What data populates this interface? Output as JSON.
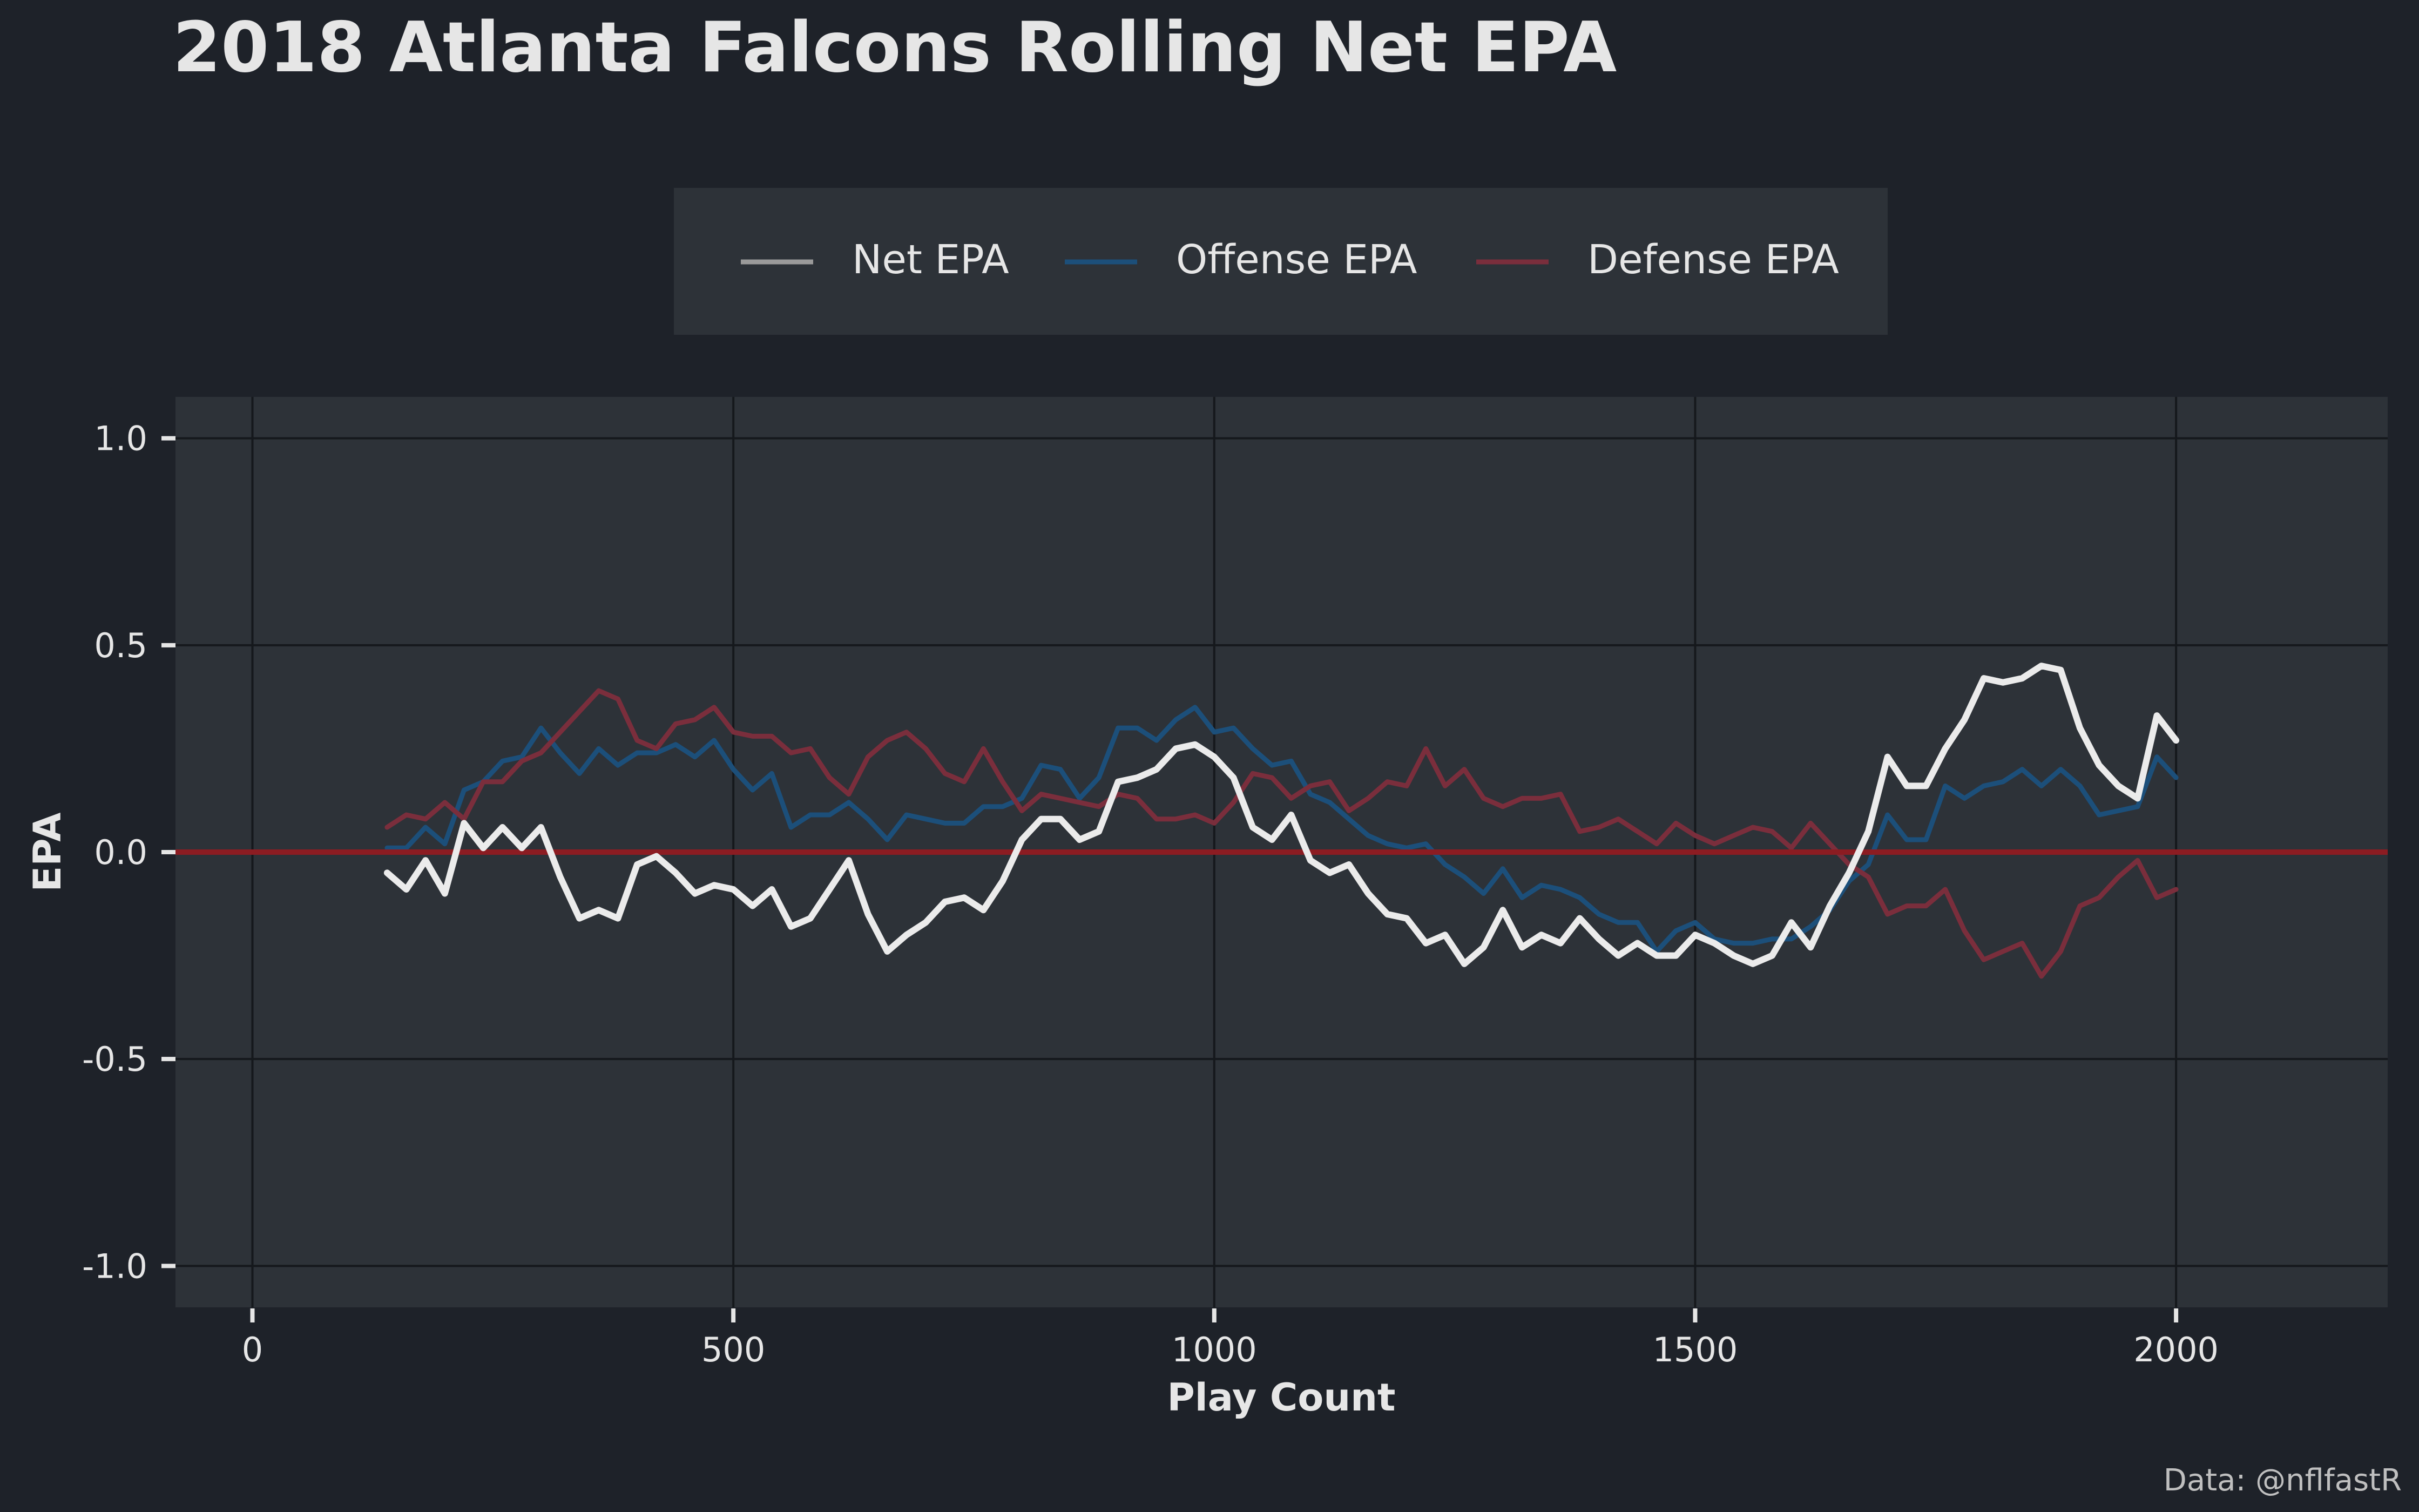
{
  "chart_data": {
    "type": "line",
    "title": "2018 Atlanta Falcons Rolling Net EPA",
    "xlabel": "Play Count",
    "ylabel": "EPA",
    "caption": "Data: @nflfastR",
    "xlim": [
      -80,
      2220
    ],
    "ylim": [
      -1.1,
      1.1
    ],
    "x_ticks": [
      0,
      500,
      1000,
      1500,
      2000
    ],
    "x_tick_labels": [
      "0",
      "500",
      "1000",
      "1500",
      "2000"
    ],
    "y_ticks": [
      1.0,
      0.5,
      0.0,
      -0.5,
      -1.0
    ],
    "y_tick_labels": [
      "1.0",
      "0.5",
      "0.0",
      "-0.5",
      "-1.0"
    ],
    "grid": true,
    "legend_position": "top",
    "reference_line": {
      "y": 0,
      "color": "#8c1c22"
    },
    "colors": {
      "background": "#1e2229",
      "panel": "#2d3238",
      "grid": "#15181c",
      "text": "#e6e6e6"
    },
    "series": [
      {
        "name": "Net EPA",
        "color": "#ebebeb",
        "x": [
          140,
          160,
          180,
          200,
          220,
          240,
          260,
          280,
          300,
          320,
          340,
          360,
          380,
          400,
          420,
          440,
          460,
          480,
          500,
          520,
          540,
          560,
          580,
          600,
          620,
          640,
          660,
          680,
          700,
          720,
          740,
          760,
          780,
          800,
          820,
          840,
          860,
          880,
          900,
          920,
          940,
          960,
          980,
          1000,
          1020,
          1040,
          1060,
          1080,
          1100,
          1120,
          1140,
          1160,
          1180,
          1200,
          1220,
          1240,
          1260,
          1280,
          1300,
          1320,
          1340,
          1360,
          1380,
          1400,
          1420,
          1440,
          1460,
          1480,
          1500,
          1520,
          1540,
          1560,
          1580,
          1600,
          1620,
          1640,
          1660,
          1680,
          1700,
          1720,
          1740,
          1760,
          1780,
          1800,
          1820,
          1840,
          1860,
          1880,
          1900,
          1920,
          1940,
          1960,
          1980,
          2000
        ],
        "values": [
          -0.05,
          -0.09,
          -0.02,
          -0.1,
          0.07,
          0.01,
          0.06,
          0.01,
          0.06,
          -0.06,
          -0.16,
          -0.14,
          -0.16,
          -0.03,
          -0.01,
          -0.05,
          -0.1,
          -0.08,
          -0.09,
          -0.13,
          -0.09,
          -0.18,
          -0.16,
          -0.09,
          -0.02,
          -0.15,
          -0.24,
          -0.2,
          -0.17,
          -0.12,
          -0.11,
          -0.14,
          -0.07,
          0.03,
          0.08,
          0.08,
          0.03,
          0.05,
          0.17,
          0.18,
          0.2,
          0.25,
          0.26,
          0.23,
          0.18,
          0.06,
          0.03,
          0.09,
          -0.02,
          -0.05,
          -0.03,
          -0.1,
          -0.15,
          -0.16,
          -0.22,
          -0.2,
          -0.27,
          -0.23,
          -0.14,
          -0.23,
          -0.2,
          -0.22,
          -0.16,
          -0.21,
          -0.25,
          -0.22,
          -0.25,
          -0.25,
          -0.2,
          -0.22,
          -0.25,
          -0.27,
          -0.25,
          -0.17,
          -0.23,
          -0.13,
          -0.05,
          0.05,
          0.23,
          0.16,
          0.16,
          0.25,
          0.32,
          0.42,
          0.41,
          0.42,
          0.45,
          0.44,
          0.3,
          0.21,
          0.16,
          0.13,
          0.33,
          0.27
        ]
      },
      {
        "name": "Offense EPA",
        "color": "#1c4f7a",
        "x": [
          140,
          160,
          180,
          200,
          220,
          240,
          260,
          280,
          300,
          320,
          340,
          360,
          380,
          400,
          420,
          440,
          460,
          480,
          500,
          520,
          540,
          560,
          580,
          600,
          620,
          640,
          660,
          680,
          700,
          720,
          740,
          760,
          780,
          800,
          820,
          840,
          860,
          880,
          900,
          920,
          940,
          960,
          980,
          1000,
          1020,
          1040,
          1060,
          1080,
          1100,
          1120,
          1140,
          1160,
          1180,
          1200,
          1220,
          1240,
          1260,
          1280,
          1300,
          1320,
          1340,
          1360,
          1380,
          1400,
          1420,
          1440,
          1460,
          1480,
          1500,
          1520,
          1540,
          1560,
          1580,
          1600,
          1620,
          1640,
          1660,
          1680,
          1700,
          1720,
          1740,
          1760,
          1780,
          1800,
          1820,
          1840,
          1860,
          1880,
          1900,
          1920,
          1940,
          1960,
          1980,
          2000
        ],
        "values": [
          0.01,
          0.01,
          0.06,
          0.02,
          0.15,
          0.17,
          0.22,
          0.23,
          0.3,
          0.24,
          0.19,
          0.25,
          0.21,
          0.24,
          0.24,
          0.26,
          0.23,
          0.27,
          0.2,
          0.15,
          0.19,
          0.06,
          0.09,
          0.09,
          0.12,
          0.08,
          0.03,
          0.09,
          0.08,
          0.07,
          0.07,
          0.11,
          0.11,
          0.13,
          0.21,
          0.2,
          0.13,
          0.18,
          0.3,
          0.3,
          0.27,
          0.32,
          0.35,
          0.29,
          0.3,
          0.25,
          0.21,
          0.22,
          0.14,
          0.12,
          0.08,
          0.04,
          0.02,
          0.01,
          0.02,
          -0.03,
          -0.06,
          -0.1,
          -0.04,
          -0.11,
          -0.08,
          -0.09,
          -0.11,
          -0.15,
          -0.17,
          -0.17,
          -0.24,
          -0.19,
          -0.17,
          -0.21,
          -0.22,
          -0.22,
          -0.21,
          -0.21,
          -0.18,
          -0.14,
          -0.07,
          -0.03,
          0.09,
          0.03,
          0.03,
          0.16,
          0.13,
          0.16,
          0.17,
          0.2,
          0.16,
          0.2,
          0.16,
          0.09,
          0.1,
          0.11,
          0.23,
          0.18
        ]
      },
      {
        "name": "Defense EPA",
        "color": "#7a2e3c",
        "x": [
          140,
          160,
          180,
          200,
          220,
          240,
          260,
          280,
          300,
          320,
          340,
          360,
          380,
          400,
          420,
          440,
          460,
          480,
          500,
          520,
          540,
          560,
          580,
          600,
          620,
          640,
          660,
          680,
          700,
          720,
          740,
          760,
          780,
          800,
          820,
          840,
          860,
          880,
          900,
          920,
          940,
          960,
          980,
          1000,
          1020,
          1040,
          1060,
          1080,
          1100,
          1120,
          1140,
          1160,
          1180,
          1200,
          1220,
          1240,
          1260,
          1280,
          1300,
          1320,
          1340,
          1360,
          1380,
          1400,
          1420,
          1440,
          1460,
          1480,
          1500,
          1520,
          1540,
          1560,
          1580,
          1600,
          1620,
          1640,
          1660,
          1680,
          1700,
          1720,
          1740,
          1760,
          1780,
          1800,
          1820,
          1840,
          1860,
          1880,
          1900,
          1920,
          1940,
          1960,
          1980,
          2000
        ],
        "values": [
          0.06,
          0.09,
          0.08,
          0.12,
          0.08,
          0.17,
          0.17,
          0.22,
          0.24,
          0.29,
          0.34,
          0.39,
          0.37,
          0.27,
          0.25,
          0.31,
          0.32,
          0.35,
          0.29,
          0.28,
          0.28,
          0.24,
          0.25,
          0.18,
          0.14,
          0.23,
          0.27,
          0.29,
          0.25,
          0.19,
          0.17,
          0.25,
          0.17,
          0.1,
          0.14,
          0.13,
          0.12,
          0.11,
          0.14,
          0.13,
          0.08,
          0.08,
          0.09,
          0.07,
          0.12,
          0.19,
          0.18,
          0.13,
          0.16,
          0.17,
          0.1,
          0.13,
          0.17,
          0.16,
          0.25,
          0.16,
          0.2,
          0.13,
          0.11,
          0.13,
          0.13,
          0.14,
          0.05,
          0.06,
          0.08,
          0.05,
          0.02,
          0.07,
          0.04,
          0.02,
          0.04,
          0.06,
          0.05,
          0.01,
          0.07,
          0.02,
          -0.03,
          -0.06,
          -0.15,
          -0.13,
          -0.13,
          -0.09,
          -0.19,
          -0.26,
          -0.24,
          -0.22,
          -0.3,
          -0.24,
          -0.13,
          -0.11,
          -0.06,
          -0.02,
          -0.11,
          -0.09
        ]
      }
    ]
  }
}
